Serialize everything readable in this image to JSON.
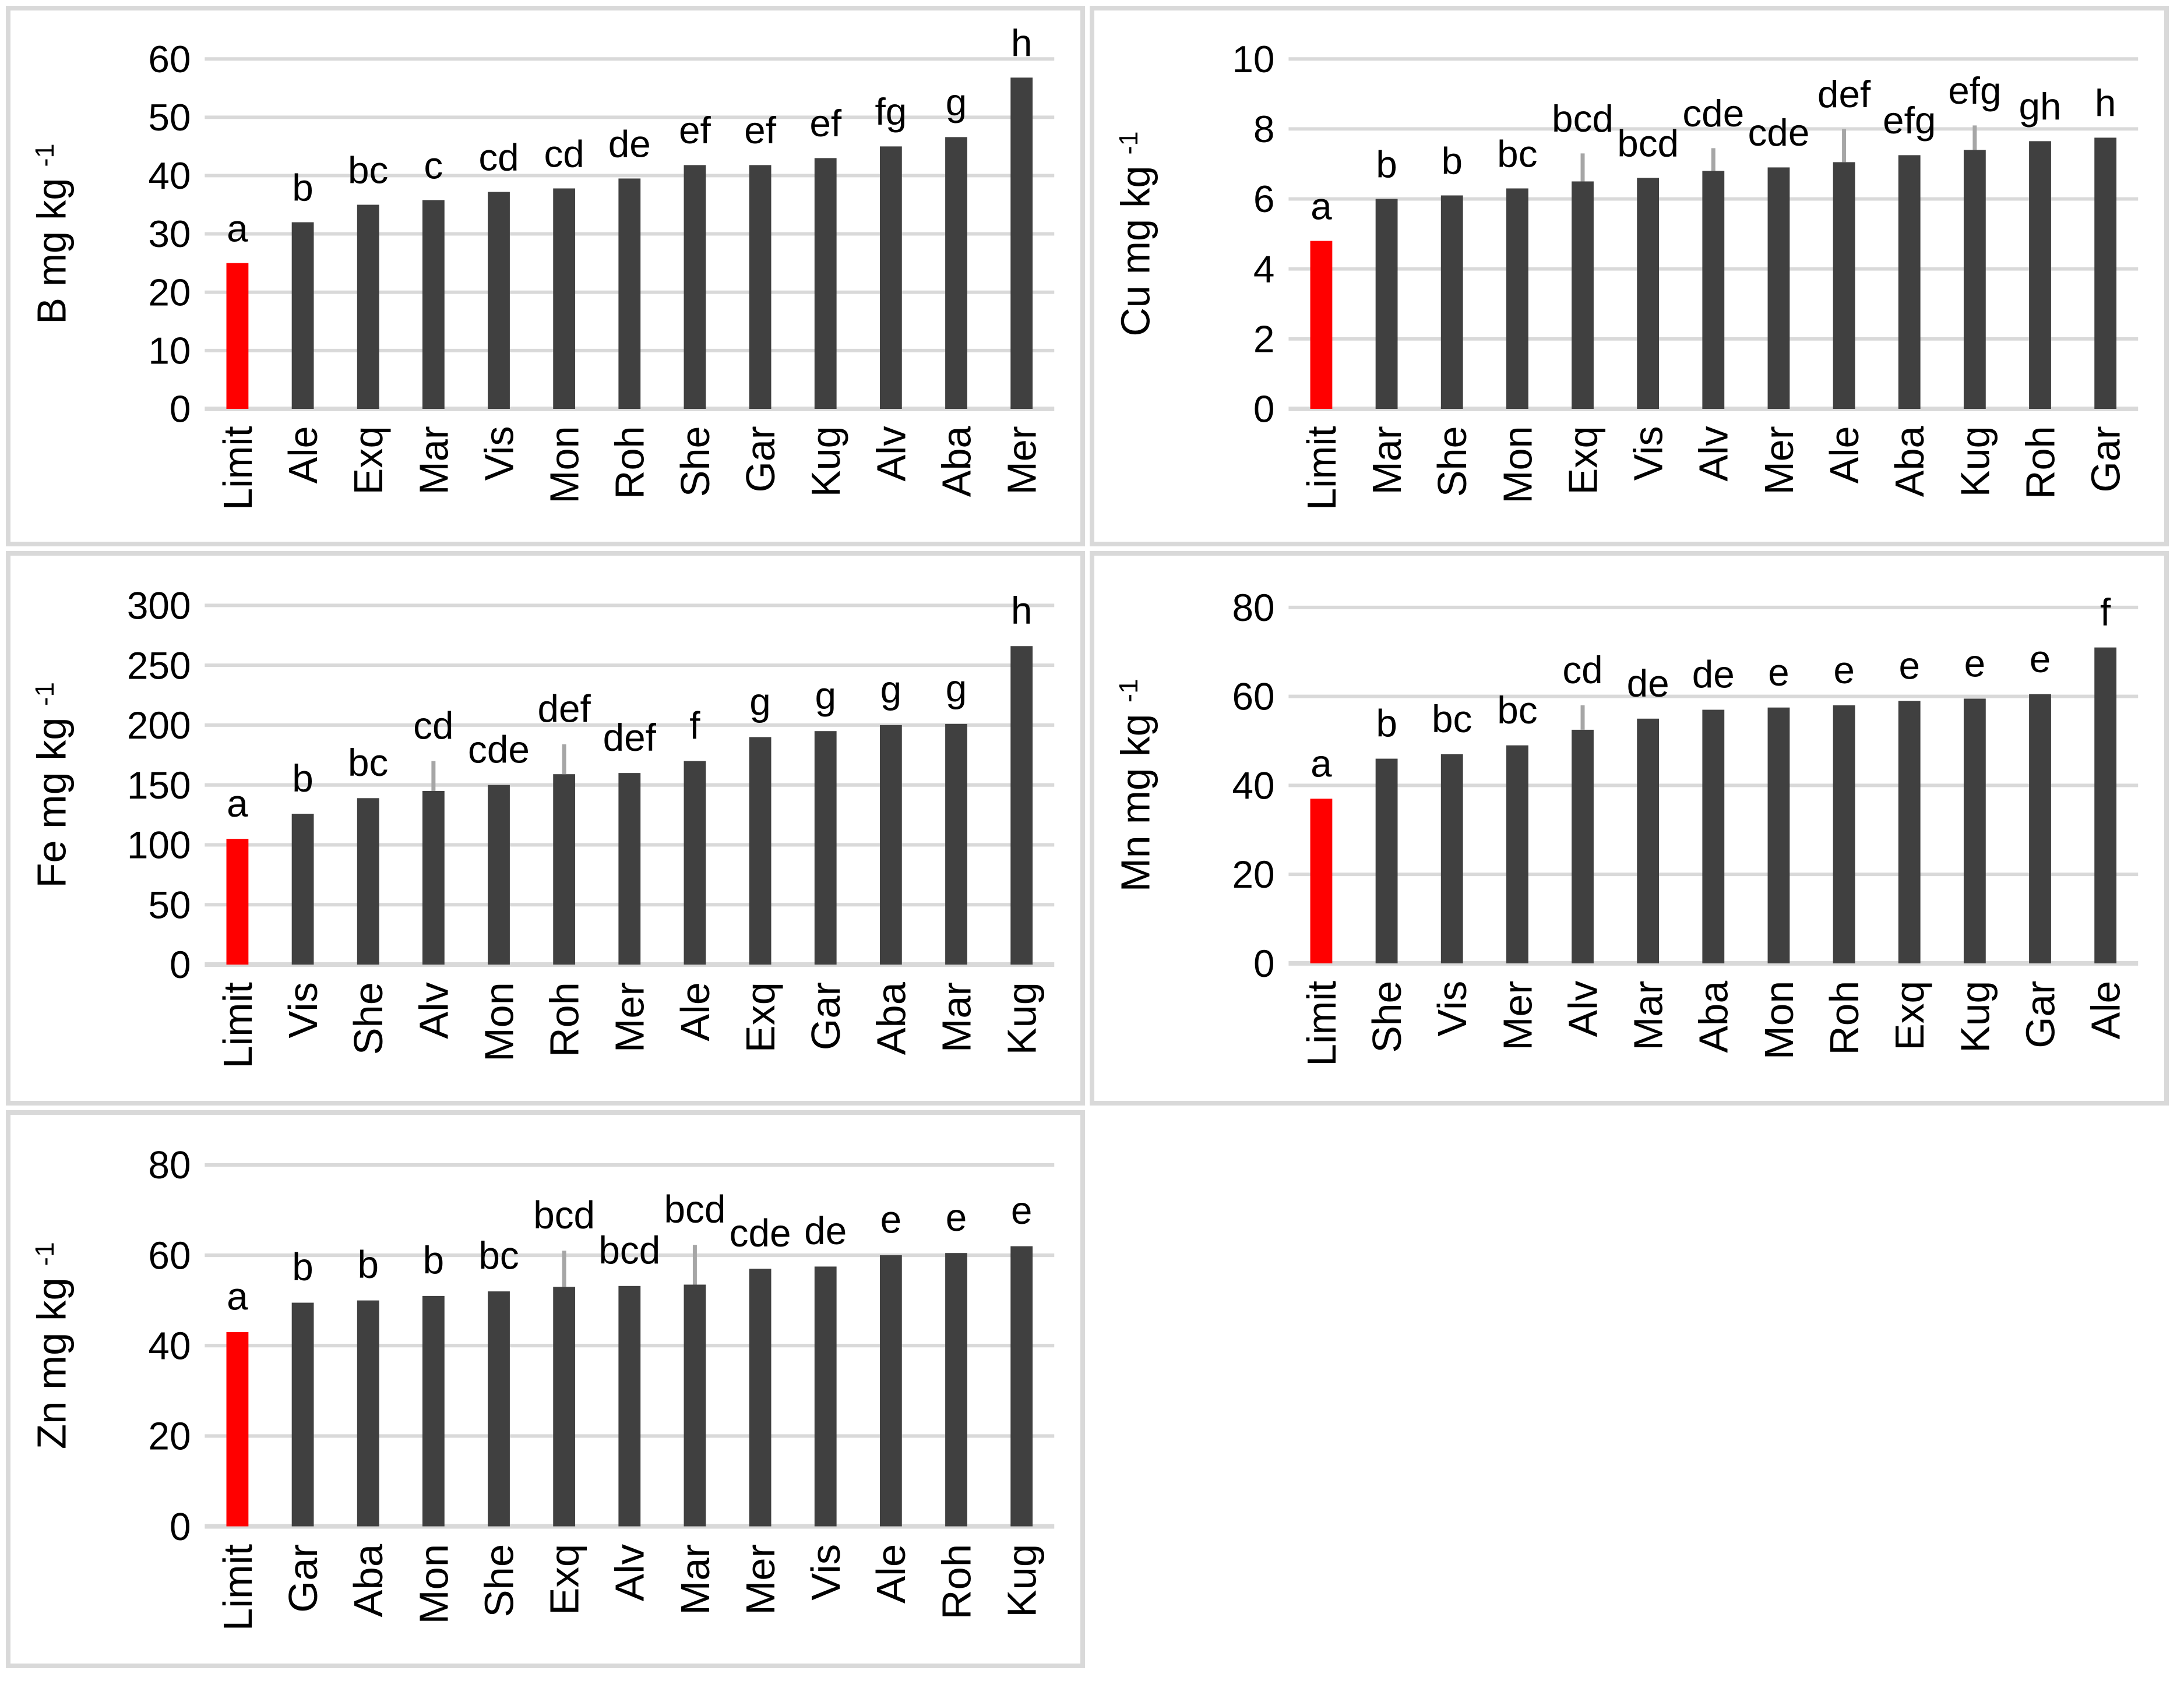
{
  "page": {
    "background": "#ffffff",
    "panel_border_color": "#d9d9d9",
    "grid": "2 columns x 3 rows, bottom-right cell empty"
  },
  "colors": {
    "bar": "#404040",
    "limit_bar": "#ff0000",
    "gridline": "#d9d9d9",
    "error_bar": "#a6a6a6",
    "text": "#000000"
  },
  "chart_data": [
    {
      "id": "b",
      "type": "bar",
      "ylabel_base": "B mg kg",
      "ylabel_sup": "-1",
      "ylim": [
        0,
        60
      ],
      "yticks": [
        0,
        10,
        20,
        30,
        40,
        50,
        60
      ],
      "grid": "horizontal gridlines on",
      "legend": "none",
      "categories": [
        "Limit",
        "Ale",
        "Exq",
        "Mar",
        "Vis",
        "Mon",
        "Roh",
        "She",
        "Gar",
        "Kug",
        "Alv",
        "Aba",
        "Mer"
      ],
      "values": [
        25,
        32,
        35,
        35.8,
        37.2,
        37.8,
        39.5,
        41.8,
        41.8,
        43,
        45,
        46.6,
        56.8
      ],
      "letters": [
        "a",
        "b",
        "bc",
        "c",
        "cd",
        "cd",
        "de",
        "ef",
        "ef",
        "ef",
        "fg",
        "g",
        "h"
      ],
      "errors_up": [
        null,
        null,
        null,
        null,
        null,
        null,
        null,
        null,
        null,
        null,
        null,
        null,
        null
      ]
    },
    {
      "id": "cu",
      "type": "bar",
      "ylabel_base": "Cu mg kg",
      "ylabel_sup": "-1",
      "ylim": [
        0,
        10
      ],
      "yticks": [
        0,
        2,
        4,
        6,
        8,
        10
      ],
      "grid": "horizontal gridlines on",
      "legend": "none",
      "categories": [
        "Limit",
        "Mar",
        "She",
        "Mon",
        "Exq",
        "Vis",
        "Alv",
        "Mer",
        "Ale",
        "Aba",
        "Kug",
        "Roh",
        "Gar"
      ],
      "values": [
        4.8,
        6.0,
        6.1,
        6.3,
        6.5,
        6.6,
        6.8,
        6.9,
        7.05,
        7.25,
        7.4,
        7.65,
        7.75
      ],
      "letters": [
        "a",
        "b",
        "b",
        "bc",
        "bcd",
        "bcd",
        "cde",
        "cde",
        "def",
        "efg",
        "efg",
        "gh",
        "h"
      ],
      "errors_up": [
        null,
        null,
        null,
        null,
        7.3,
        null,
        7.45,
        null,
        8.0,
        null,
        8.1,
        null,
        null
      ]
    },
    {
      "id": "fe",
      "type": "bar",
      "ylabel_base": "Fe mg kg",
      "ylabel_sup": "-1",
      "ylim": [
        0,
        300
      ],
      "yticks": [
        0,
        50,
        100,
        150,
        200,
        250,
        300
      ],
      "grid": "horizontal gridlines on",
      "legend": "none",
      "categories": [
        "Limit",
        "Vis",
        "She",
        "Alv",
        "Mon",
        "Roh",
        "Mer",
        "Ale",
        "Exq",
        "Gar",
        "Aba",
        "Mar",
        "Kug"
      ],
      "values": [
        105,
        126,
        139,
        145,
        150,
        159,
        160,
        170,
        190,
        195,
        200,
        201,
        266
      ],
      "letters": [
        "a",
        "b",
        "bc",
        "cd",
        "cde",
        "def",
        "def",
        "f",
        "g",
        "g",
        "g",
        "g",
        "h"
      ],
      "errors_up": [
        null,
        null,
        null,
        170,
        null,
        184,
        null,
        null,
        null,
        null,
        null,
        null,
        null
      ]
    },
    {
      "id": "mn",
      "type": "bar",
      "ylabel_base": "Mn mg kg",
      "ylabel_sup": "-1",
      "ylim": [
        0,
        80
      ],
      "yticks": [
        0,
        20,
        40,
        60,
        80
      ],
      "grid": "horizontal gridlines on",
      "legend": "none",
      "categories": [
        "Limit",
        "She",
        "Vis",
        "Mer",
        "Alv",
        "Mar",
        "Aba",
        "Mon",
        "Roh",
        "Exq",
        "Kug",
        "Gar",
        "Ale"
      ],
      "values": [
        37,
        46,
        47,
        49,
        52.5,
        55,
        57,
        57.5,
        58,
        59,
        59.5,
        60.5,
        71
      ],
      "letters": [
        "a",
        "b",
        "bc",
        "bc",
        "cd",
        "de",
        "de",
        "e",
        "e",
        "e",
        "e",
        "e",
        "f"
      ],
      "errors_up": [
        null,
        null,
        null,
        null,
        58,
        null,
        null,
        null,
        null,
        null,
        null,
        null,
        null
      ]
    },
    {
      "id": "zn",
      "type": "bar",
      "ylabel_base": "Zn mg kg",
      "ylabel_sup": "-1",
      "ylim": [
        0,
        80
      ],
      "yticks": [
        0,
        20,
        40,
        60,
        80
      ],
      "grid": "horizontal gridlines on",
      "legend": "none",
      "categories": [
        "Limit",
        "Gar",
        "Aba",
        "Mon",
        "She",
        "Exq",
        "Alv",
        "Mar",
        "Mer",
        "Vis",
        "Ale",
        "Roh",
        "Kug"
      ],
      "values": [
        43,
        49.5,
        50,
        51,
        52,
        53,
        53.2,
        53.5,
        57,
        57.5,
        60,
        60.5,
        62
      ],
      "letters": [
        "a",
        "b",
        "b",
        "b",
        "bc",
        "bcd",
        "bcd",
        "bcd",
        "cde",
        "de",
        "e",
        "e",
        "e"
      ],
      "errors_up": [
        null,
        null,
        null,
        null,
        null,
        61,
        null,
        62.3,
        null,
        null,
        null,
        null,
        null
      ]
    }
  ]
}
